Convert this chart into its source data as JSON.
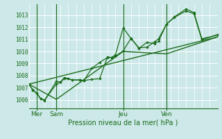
{
  "bg_color": "#cce8e8",
  "grid_color": "#aad4d4",
  "line_color": "#1a6b1a",
  "xlabel": "Pression niveau de la mer( hPa )",
  "ylabel_ticks": [
    1006,
    1007,
    1008,
    1009,
    1010,
    1011,
    1012,
    1013
  ],
  "ylim": [
    1005.3,
    1013.9
  ],
  "xlim": [
    0,
    24
  ],
  "day_ticks": [
    {
      "x": 1.0,
      "label": "Mer"
    },
    {
      "x": 3.5,
      "label": "Sam"
    },
    {
      "x": 12.0,
      "label": "Jeu"
    },
    {
      "x": 17.5,
      "label": "Ven"
    }
  ],
  "day_lines": [
    1.0,
    3.5,
    12.0,
    17.5
  ],
  "series": [
    {
      "x": [
        0,
        0.5,
        1.0,
        1.5,
        2.0,
        3.5,
        4.0,
        4.5,
        5.0,
        5.5,
        6.5,
        7.0,
        8.0,
        9.0,
        10.0,
        10.5,
        11.0,
        12.0,
        13.0,
        14.0,
        15.0,
        16.0,
        16.5,
        17.5,
        18.5,
        20.0,
        21.0,
        22.0,
        24.0
      ],
      "y": [
        1007.3,
        1006.85,
        1006.55,
        1006.1,
        1005.95,
        1007.55,
        1007.45,
        1007.85,
        1007.75,
        1007.65,
        1007.65,
        1007.6,
        1007.7,
        1007.75,
        1009.55,
        1009.5,
        1009.7,
        1011.95,
        1011.05,
        1010.3,
        1010.35,
        1010.8,
        1011.05,
        1012.25,
        1012.85,
        1013.5,
        1013.2,
        1011.05,
        1011.35
      ],
      "marker": true
    },
    {
      "x": [
        0,
        0.5,
        1.0,
        1.5,
        2.0,
        3.5,
        4.0,
        4.5,
        5.0,
        5.5,
        6.5,
        7.0,
        8.0,
        9.0,
        10.0,
        10.5,
        11.0,
        12.0,
        13.0,
        14.0,
        15.0,
        16.0,
        16.5,
        17.5,
        18.5,
        20.0,
        21.0,
        22.0,
        24.0
      ],
      "y": [
        1007.3,
        1006.8,
        1006.55,
        1006.1,
        1006.0,
        1007.3,
        1007.45,
        1007.75,
        1007.75,
        1007.65,
        1007.65,
        1007.6,
        1008.6,
        1009.1,
        1009.5,
        1009.5,
        1009.6,
        1010.05,
        1011.1,
        1010.25,
        1010.75,
        1010.65,
        1010.85,
        1012.25,
        1012.8,
        1013.35,
        1013.1,
        1010.95,
        1011.4
      ],
      "marker": true
    },
    {
      "x": [
        0,
        24
      ],
      "y": [
        1007.3,
        1011.2
      ],
      "marker": false
    },
    {
      "x": [
        0,
        3.5,
        12.0,
        17.5,
        24.0
      ],
      "y": [
        1007.3,
        1006.05,
        1010.0,
        1009.8,
        1011.2
      ],
      "marker": false
    }
  ]
}
